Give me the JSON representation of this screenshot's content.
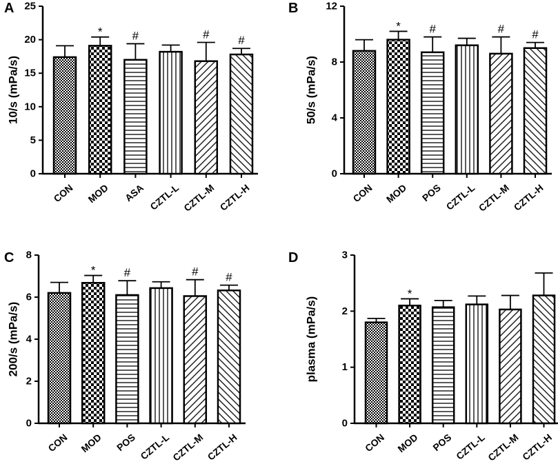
{
  "chart_data": [
    {
      "type": "bar",
      "panel": "A",
      "ylabel": "10/s (mPa/s)",
      "ylim": [
        0,
        25
      ],
      "yticks": [
        0,
        5,
        10,
        15,
        20,
        25
      ],
      "categories": [
        "CON",
        "MOD",
        "ASA",
        "CZTL-L",
        "CZTL-M",
        "CZTL-H"
      ],
      "values": [
        17.4,
        19.1,
        17.0,
        18.2,
        16.8,
        17.8
      ],
      "errors": [
        1.7,
        1.3,
        2.4,
        1.0,
        2.8,
        0.9
      ],
      "marks": [
        "",
        "*",
        "#",
        "",
        "#",
        "#"
      ]
    },
    {
      "type": "bar",
      "panel": "B",
      "ylabel": "50/s (mPa/s)",
      "ylim": [
        0,
        12
      ],
      "yticks": [
        0,
        4,
        8,
        12
      ],
      "categories": [
        "CON",
        "MOD",
        "POS",
        "CZTL-L",
        "CZTL-M",
        "CZTL-H"
      ],
      "values": [
        8.8,
        9.6,
        8.7,
        9.2,
        8.6,
        9.0
      ],
      "errors": [
        0.8,
        0.6,
        1.1,
        0.5,
        1.2,
        0.4
      ],
      "marks": [
        "",
        "*",
        "#",
        "",
        "#",
        "#"
      ]
    },
    {
      "type": "bar",
      "panel": "C",
      "ylabel": "200/s (mPa/s)",
      "ylim": [
        0,
        8
      ],
      "yticks": [
        0,
        2,
        4,
        6,
        8
      ],
      "categories": [
        "CON",
        "MOD",
        "POS",
        "CZTL-L",
        "CZTL-M",
        "CZTL-H"
      ],
      "values": [
        6.2,
        6.68,
        6.1,
        6.43,
        6.05,
        6.32
      ],
      "errors": [
        0.5,
        0.35,
        0.68,
        0.3,
        0.78,
        0.25
      ],
      "marks": [
        "",
        "*",
        "#",
        "",
        "#",
        "#"
      ]
    },
    {
      "type": "bar",
      "panel": "D",
      "ylabel": "plasma (mPa/s)",
      "ylim": [
        0,
        3
      ],
      "yticks": [
        0,
        1,
        2,
        3
      ],
      "categories": [
        "CON",
        "MOD",
        "POS",
        "CZTL-L",
        "CZTL-M",
        "CZTL-H"
      ],
      "values": [
        1.8,
        2.1,
        2.07,
        2.12,
        2.03,
        2.28
      ],
      "errors": [
        0.07,
        0.12,
        0.12,
        0.15,
        0.25,
        0.4
      ],
      "marks": [
        "",
        "*",
        "",
        "",
        "",
        ""
      ]
    }
  ]
}
